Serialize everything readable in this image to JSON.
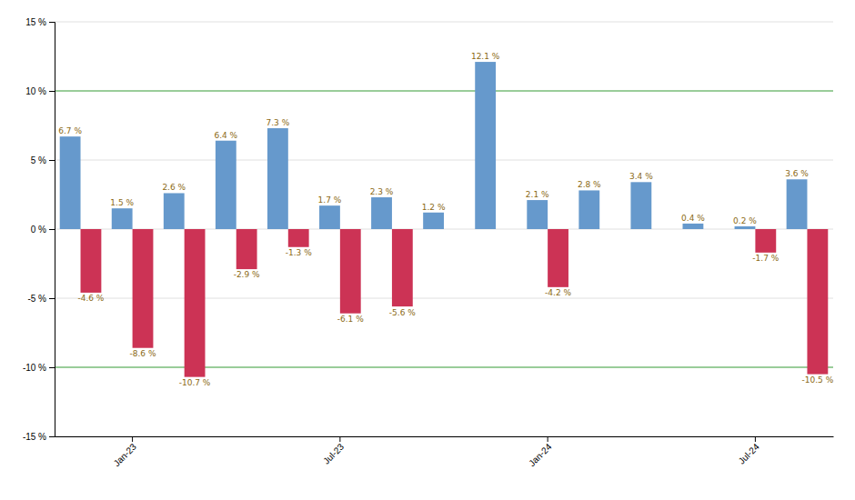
{
  "chart_data": {
    "type": "bar",
    "categories": [
      null,
      "Jan-23",
      null,
      null,
      null,
      "Jul-23",
      null,
      null,
      null,
      "Jan-24",
      null,
      null,
      null,
      "Jul-24",
      null
    ],
    "series": [
      {
        "color": "#6699cc",
        "values": [
          6.7,
          1.5,
          2.6,
          6.4,
          7.3,
          1.7,
          2.3,
          1.2,
          12.1,
          2.1,
          2.8,
          3.4,
          0.4,
          0.2,
          3.6
        ],
        "value_labels": [
          "6.7 %",
          "1.5 %",
          "2.6 %",
          "6.4 %",
          "7.3 %",
          "1.7 %",
          "2.3 %",
          "1.2 %",
          "12.1 %",
          "2.1 %",
          "2.8 %",
          "3.4 %",
          "0.4 %",
          "0.2 %",
          "3.6 %"
        ]
      },
      {
        "color": "#cc3355",
        "values": [
          -4.6,
          -8.6,
          -10.7,
          -2.9,
          -1.3,
          -6.1,
          -5.6,
          0,
          0,
          -4.2,
          0,
          0,
          0,
          -1.7,
          -10.5
        ],
        "value_labels": [
          "-4.6 %",
          "-8.6 %",
          "-10.7 %",
          "-2.9 %",
          "-1.3 %",
          "-6.1 %",
          "-5.6 %",
          null,
          null,
          "-4.2 %",
          null,
          null,
          null,
          "-1.7 %",
          "-10.5 %"
        ]
      }
    ],
    "ylim": [
      -15,
      15
    ],
    "yticks": [
      {
        "value": -15,
        "label": "-15 %"
      },
      {
        "value": -10,
        "label": "-10 %"
      },
      {
        "value": -5,
        "label": "-5 %"
      },
      {
        "value": 0,
        "label": "0 %"
      },
      {
        "value": 5,
        "label": "5 %"
      },
      {
        "value": 10,
        "label": "10 %"
      },
      {
        "value": 15,
        "label": "15 %"
      }
    ],
    "hlines": [
      {
        "value": -10,
        "color": "#44aa44"
      },
      {
        "value": 10,
        "color": "#44aa44"
      }
    ],
    "grid": true,
    "data_labels": true
  }
}
